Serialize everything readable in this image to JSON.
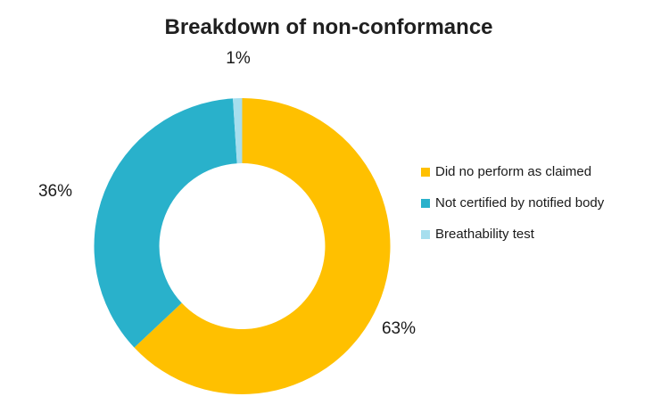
{
  "title": "Breakdown of non-conformance",
  "chart_data": {
    "type": "pie",
    "subtype": "donut",
    "title": "Breakdown of non-conformance",
    "categories": [
      "Did no perform as claimed",
      "Not certified by notified body",
      "Breathability test"
    ],
    "values": [
      63,
      36,
      1
    ],
    "unit": "%",
    "data_labels": [
      "63%",
      "36%",
      "1%"
    ],
    "slice_colors": [
      "#FFC000",
      "#29B1CB",
      "#A6DEEE"
    ],
    "start_angle_deg": 0,
    "direction": "clockwise",
    "donut_hole_ratio": 0.56,
    "legend_position": "right",
    "data_label_position": "outside-end",
    "title_color": "#1F1F1F",
    "label_text_color": "#1A1A1A",
    "background_color": "#FFFFFF"
  },
  "legend": {
    "items": [
      {
        "label": "Did no perform as claimed",
        "color": "#FFC000"
      },
      {
        "label": "Not certified by notified body",
        "color": "#29B1CB"
      },
      {
        "label": "Breathability test",
        "color": "#A6DEEE"
      }
    ]
  }
}
